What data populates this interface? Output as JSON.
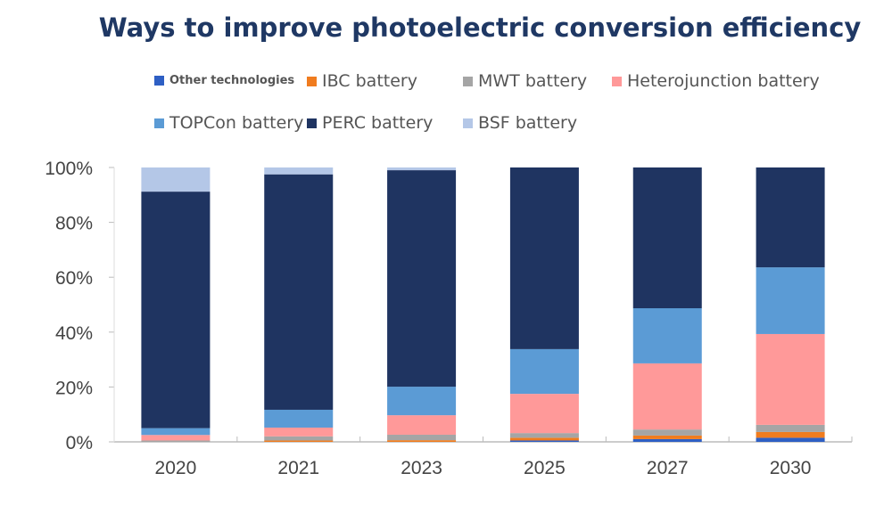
{
  "chart_data": {
    "type": "bar",
    "stacked": true,
    "title": "Ways to improve photoelectric conversion efficiency",
    "categories": [
      "2020",
      "2021",
      "2023",
      "2025",
      "2027",
      "2030"
    ],
    "ylim": [
      0,
      100
    ],
    "yticks": [
      "0%",
      "20%",
      "40%",
      "60%",
      "80%",
      "100%"
    ],
    "grid": false,
    "legend_placement": "top",
    "series": [
      {
        "name": "Other technologies",
        "color": "#2e5fc4",
        "values": [
          0,
          0,
          0,
          0.5,
          1,
          1.5
        ]
      },
      {
        "name": "IBC battery",
        "color": "#f07c1f",
        "values": [
          0,
          0.5,
          0.6,
          1,
          1.3,
          2.1
        ]
      },
      {
        "name": "MWT battery",
        "color": "#a5a5a5",
        "values": [
          0.5,
          1.5,
          2,
          1.7,
          2.2,
          2.6
        ]
      },
      {
        "name": "Heterojunction battery",
        "color": "#ff9999",
        "values": [
          2,
          3.2,
          7.1,
          14.3,
          24.1,
          33.1
        ]
      },
      {
        "name": "TOPCon battery",
        "color": "#5b9bd5",
        "values": [
          2.5,
          6.5,
          10.4,
          16.3,
          20.1,
          24.3
        ]
      },
      {
        "name": "PERC battery",
        "color": "#1f3461",
        "values": [
          86.2,
          85.8,
          78.9,
          66.2,
          51.3,
          36.4
        ]
      },
      {
        "name": "BSF battery",
        "color": "#b4c7e7",
        "values": [
          8.8,
          2.5,
          1,
          0,
          0,
          0
        ]
      }
    ]
  }
}
